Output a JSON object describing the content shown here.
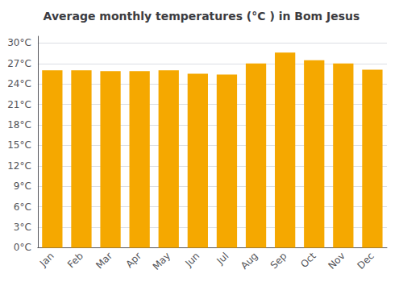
{
  "chart_data": {
    "type": "bar",
    "title": "Average monthly temperatures (°C ) in Bom Jesus",
    "categories": [
      "Jan",
      "Feb",
      "Mar",
      "Apr",
      "May",
      "Jun",
      "Jul",
      "Aug",
      "Sep",
      "Oct",
      "Nov",
      "Dec"
    ],
    "values": [
      26.0,
      26.0,
      25.9,
      25.9,
      26.0,
      25.5,
      25.4,
      27.0,
      28.6,
      27.5,
      27.0,
      26.1
    ],
    "color": "#F5A800",
    "ylim": [
      0,
      31
    ],
    "yticks": [
      {
        "value": 0,
        "label": "0°C"
      },
      {
        "value": 3,
        "label": "3°C"
      },
      {
        "value": 6,
        "label": "6°C"
      },
      {
        "value": 9,
        "label": "9°C"
      },
      {
        "value": 12,
        "label": "12°C"
      },
      {
        "value": 15,
        "label": "15°C"
      },
      {
        "value": 18,
        "label": "18°C"
      },
      {
        "value": 21,
        "label": "21°C"
      },
      {
        "value": 24,
        "label": "24°C"
      },
      {
        "value": 27,
        "label": "27°C"
      },
      {
        "value": 30,
        "label": "30°C"
      }
    ],
    "grid": true
  }
}
